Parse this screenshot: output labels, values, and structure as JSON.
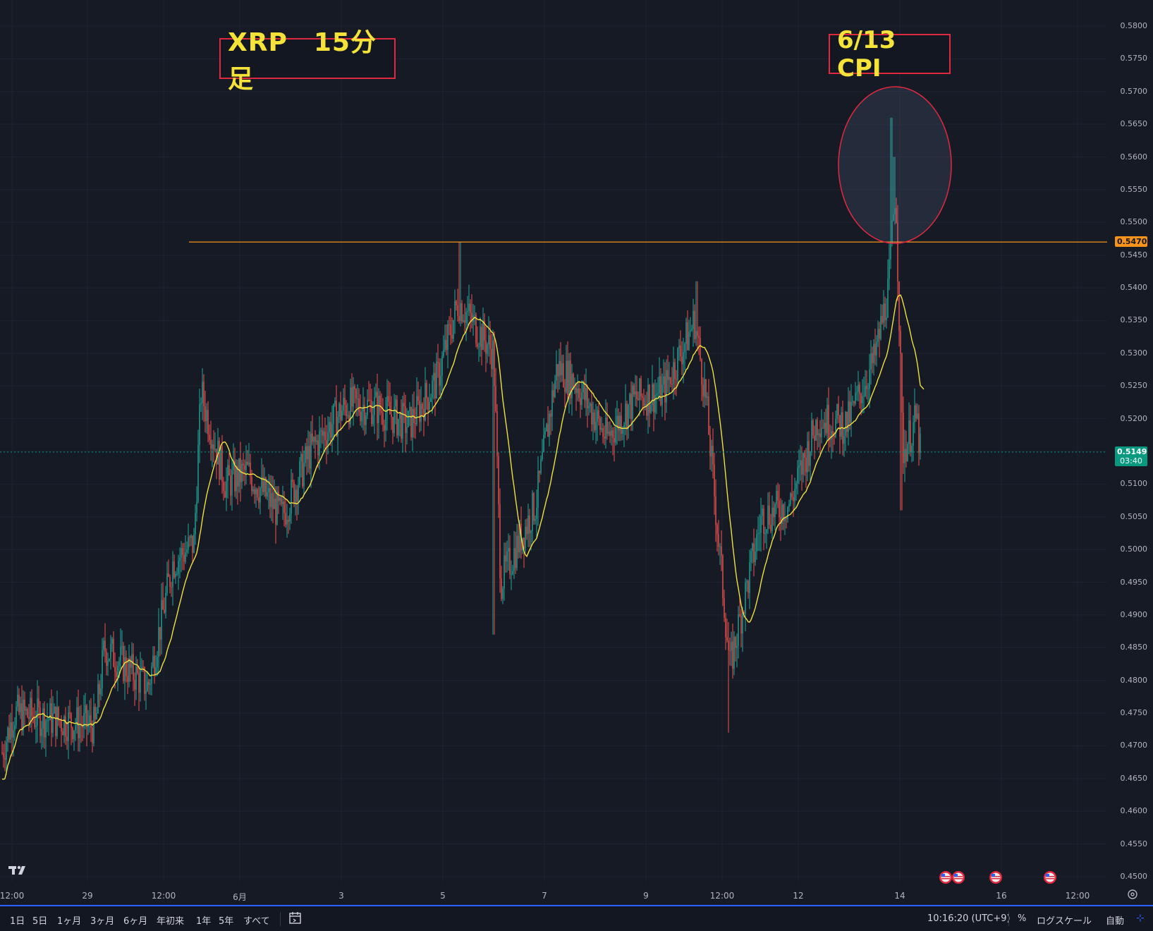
{
  "annotations": {
    "title_box": "XRP　15分足",
    "event_box": "6/13 CPI"
  },
  "price_axis": {
    "ticks": [
      "0.5800",
      "0.5750",
      "0.5700",
      "0.5650",
      "0.5600",
      "0.5550",
      "0.5500",
      "0.5450",
      "0.5400",
      "0.5350",
      "0.5300",
      "0.5250",
      "0.5200",
      "0.5150",
      "0.5100",
      "0.5050",
      "0.5000",
      "0.4950",
      "0.4900",
      "0.4850",
      "0.4800",
      "0.4750",
      "0.4700",
      "0.4650",
      "0.4600",
      "0.4550",
      "0.4500"
    ],
    "level_tag": "0.5470",
    "current_price": "0.5149",
    "countdown": "03:40"
  },
  "time_axis": {
    "ticks": [
      "12:00",
      "29",
      "12:00",
      "6月",
      "3",
      "5",
      "7",
      "9",
      "12:00",
      "12",
      "14",
      "16",
      "12:00"
    ]
  },
  "bottom_bar": {
    "ranges": [
      "1日",
      "5日",
      "1ヶ月",
      "3ヶ月",
      "6ヶ月",
      "年初来",
      "1年",
      "5年",
      "すべて"
    ],
    "timezone": "10:16:20 (UTC+9)",
    "percent": "%",
    "log_scale": "ログスケール",
    "auto": "自動",
    "calendar_icon": "calendar-range-icon",
    "expand_icon": "expand-icon"
  },
  "colors": {
    "background": "#161a25",
    "up_candle": "#26a69a",
    "down_candle": "#ef5350",
    "ma_line": "#f0e040",
    "level_line": "#f7931a",
    "annotation_border": "#e0293f",
    "annotation_text": "#f5e33a",
    "current_price_bg": "#089981"
  },
  "chart_data": {
    "type": "candlestick",
    "symbol": "XRP",
    "interval": "15分足",
    "y_axis_range": [
      0.45,
      0.58
    ],
    "horizontal_level": 0.547,
    "last_price": 0.5149,
    "moving_average": "yellow line",
    "series": [
      {
        "points": [
          [
            "12:00",
            0.469
          ],
          [
            "29",
            0.472
          ],
          [
            "12:00",
            0.498
          ],
          [
            "6月",
            0.51
          ],
          [
            "3",
            0.518
          ],
          [
            "5",
            0.538
          ],
          [
            "",
            0.488
          ],
          [
            "7",
            0.528
          ],
          [
            "9",
            0.522
          ],
          [
            "",
            0.537
          ],
          [
            "12:00",
            0.472
          ],
          [
            "12",
            0.522
          ],
          [
            "14",
            0.565
          ],
          [
            "",
            0.506
          ],
          [
            "",
            0.5149
          ]
        ]
      }
    ]
  }
}
